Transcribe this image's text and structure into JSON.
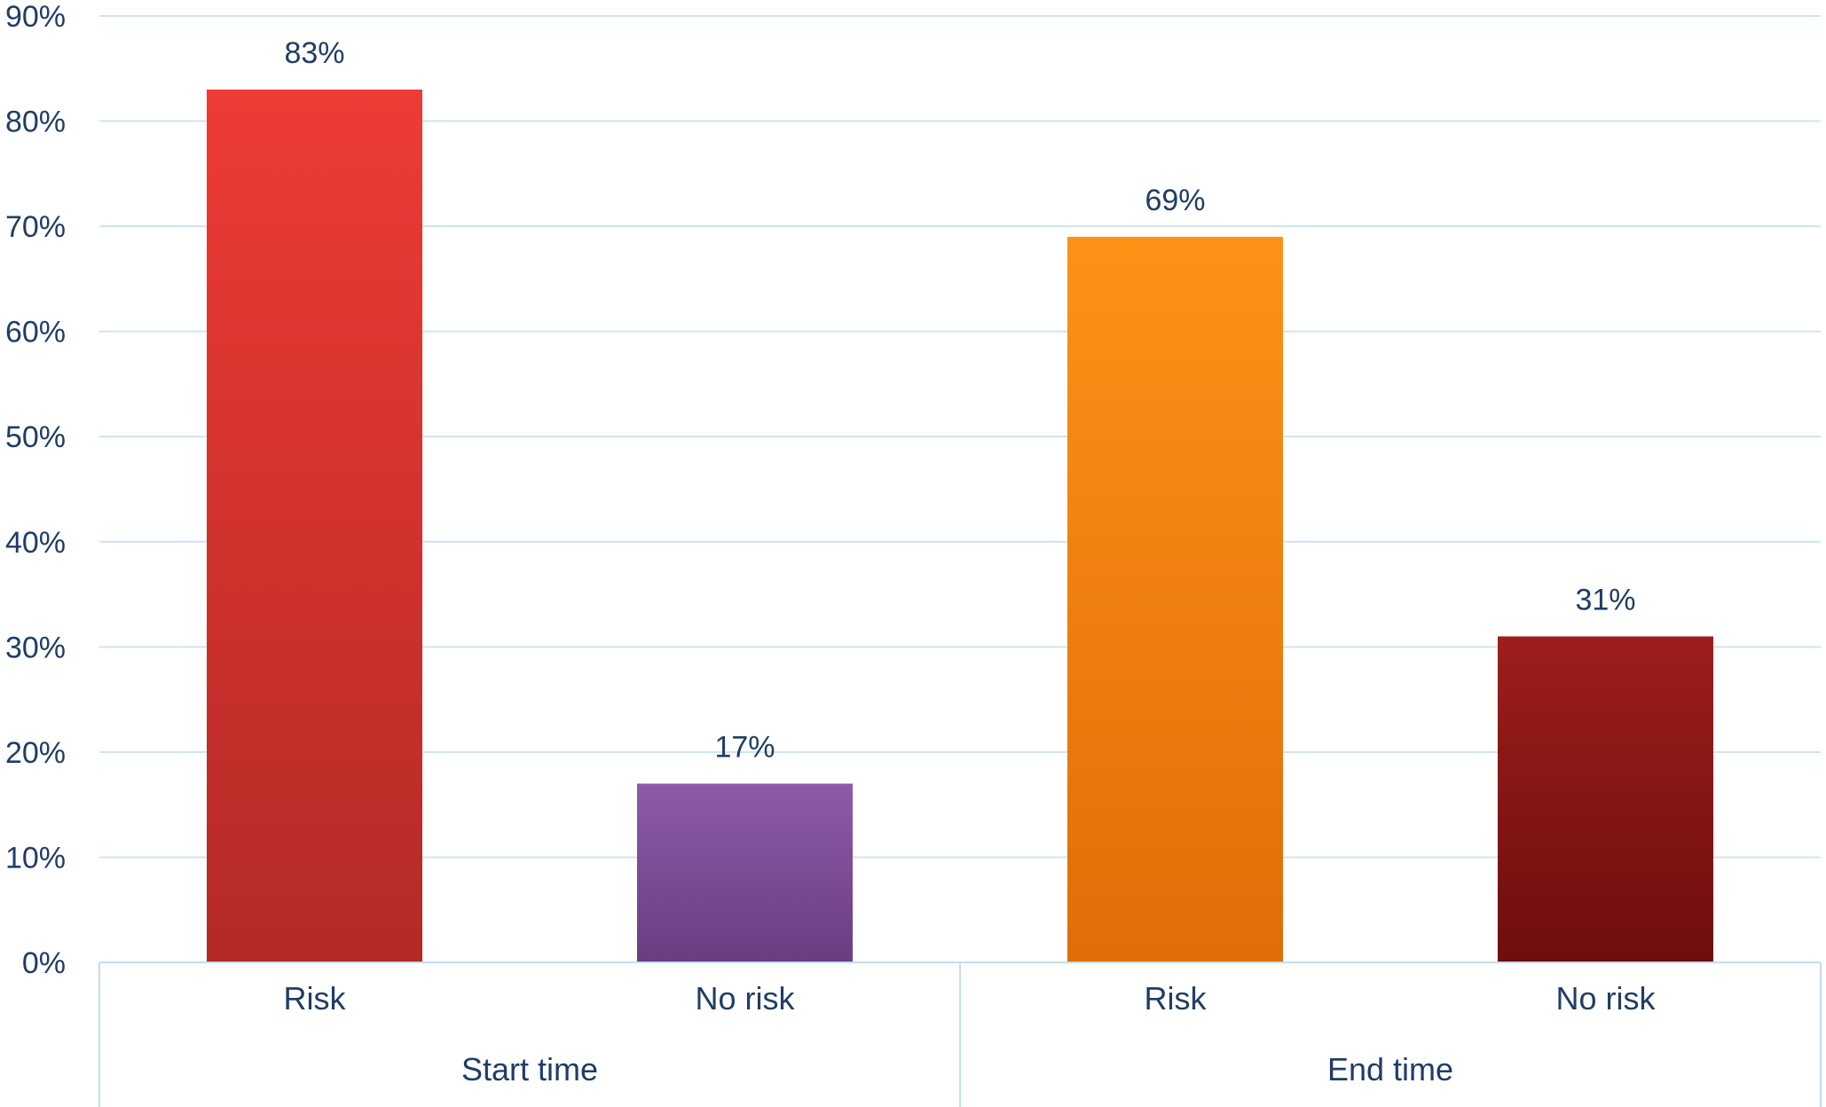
{
  "chart_data": {
    "type": "bar",
    "title": "",
    "xlabel": "",
    "ylabel": "",
    "ylim": [
      0,
      90
    ],
    "yticks": [
      "0%",
      "10%",
      "20%",
      "30%",
      "40%",
      "50%",
      "60%",
      "70%",
      "80%",
      "90%"
    ],
    "grid": true,
    "legend": "none",
    "groups": [
      {
        "label": "Start time",
        "bars": [
          {
            "category": "Risk",
            "value": 83,
            "label": "83%",
            "color_top": "#ee3b36",
            "color_bottom": "#b42a26"
          },
          {
            "category": "No risk",
            "value": 17,
            "label": "17%",
            "color_top": "#8d5aa9",
            "color_bottom": "#6a3d80"
          }
        ]
      },
      {
        "label": "End time",
        "bars": [
          {
            "category": "Risk",
            "value": 69,
            "label": "69%",
            "color_top": "#fd9217",
            "color_bottom": "#e06d07"
          },
          {
            "category": "No risk",
            "value": 31,
            "label": "31%",
            "color_top": "#9c1e1c",
            "color_bottom": "#6e0e0c"
          }
        ]
      }
    ],
    "colors": {
      "text": "#1f3d66",
      "gridline": "#cfe3ef",
      "axis": "#c6dceb"
    }
  }
}
